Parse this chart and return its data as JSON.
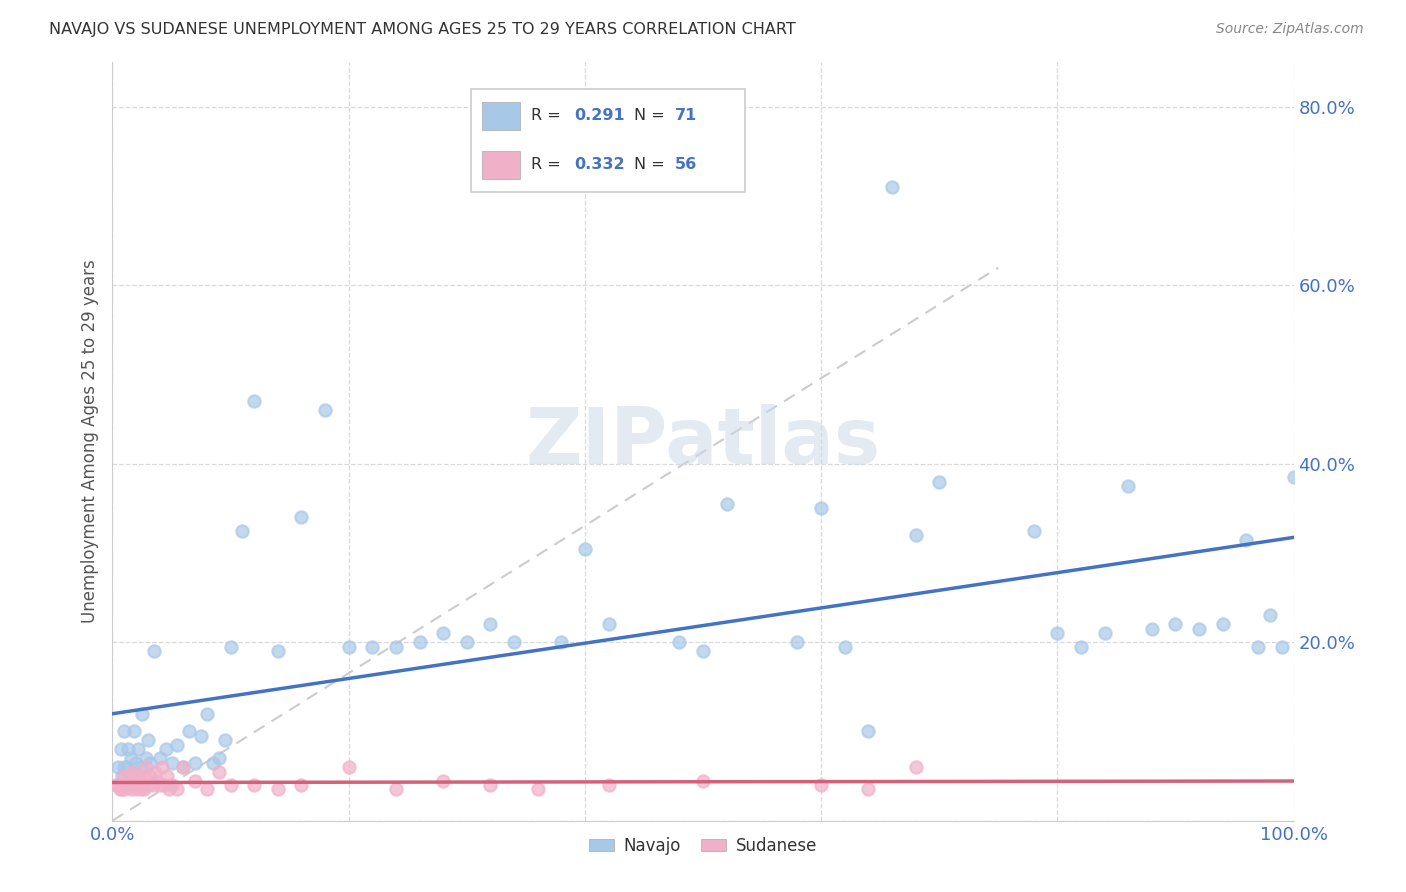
{
  "title": "NAVAJO VS SUDANESE UNEMPLOYMENT AMONG AGES 25 TO 29 YEARS CORRELATION CHART",
  "source": "Source: ZipAtlas.com",
  "ylabel": "Unemployment Among Ages 25 to 29 years",
  "xlim": [
    0,
    1.0
  ],
  "ylim": [
    0,
    0.85
  ],
  "xtick_labels": [
    "0.0%",
    "",
    "",
    "",
    "",
    "100.0%"
  ],
  "ytick_labels": [
    "",
    "20.0%",
    "40.0%",
    "60.0%",
    "80.0%"
  ],
  "navajo_R": "0.291",
  "navajo_N": "71",
  "sudanese_R": "0.332",
  "sudanese_N": "56",
  "navajo_color": "#a8c8e8",
  "sudanese_color": "#f0b0c8",
  "navajo_line_color": "#4472c4",
  "sudanese_line_color": "#d4607a",
  "legend_label_navajo": "Navajo",
  "legend_label_sudanese": "Sudanese",
  "watermark": "ZIPatlas"
}
